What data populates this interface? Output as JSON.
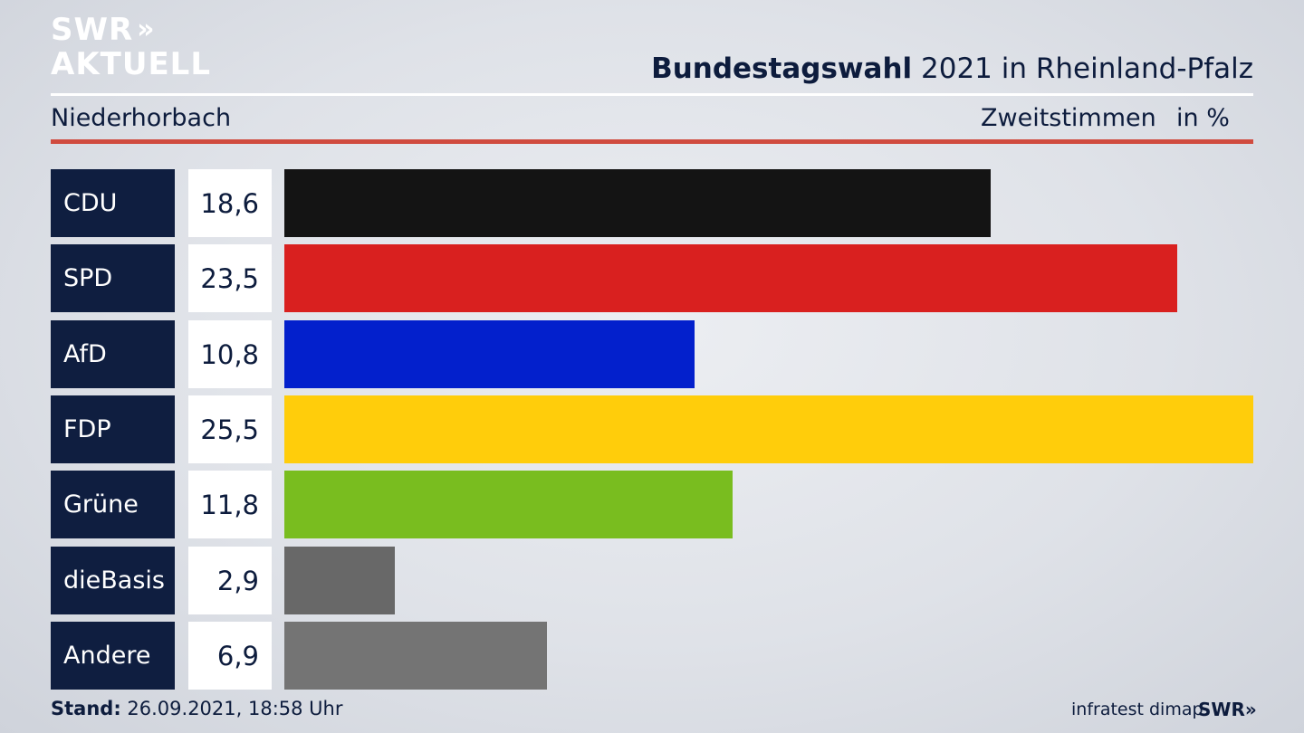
{
  "header": {
    "logo_line1": "SWR",
    "logo_arrows": "»",
    "logo_line2": "AKTUELL",
    "title_bold": "Bundestagswahl",
    "title_rest": " 2021 in Rheinland-Pfalz",
    "region": "Niederhorbach",
    "measure": "Zweitstimmen",
    "unit": "in %"
  },
  "chart_data": {
    "type": "bar",
    "orientation": "horizontal",
    "categories": [
      "CDU",
      "SPD",
      "AfD",
      "FDP",
      "Grüne",
      "dieBasis",
      "Andere"
    ],
    "values": [
      18.6,
      23.5,
      10.8,
      25.5,
      11.8,
      2.9,
      6.9
    ],
    "value_labels": [
      "18,6",
      "23,5",
      "10,8",
      "25,5",
      "11,8",
      "2,9",
      "6,9"
    ],
    "colors": [
      "#141414",
      "#d9201f",
      "#0320cc",
      "#ffcd0b",
      "#79bd1f",
      "#686868",
      "#747474"
    ],
    "title": "Bundestagswahl 2021 in Rheinland-Pfalz",
    "xlim": [
      0,
      25.5
    ]
  },
  "footer": {
    "stand_label": "Stand:",
    "stand_value": " 26.09.2021, 18:58 Uhr",
    "source": "infratest dimap",
    "swr": "SWR»"
  }
}
